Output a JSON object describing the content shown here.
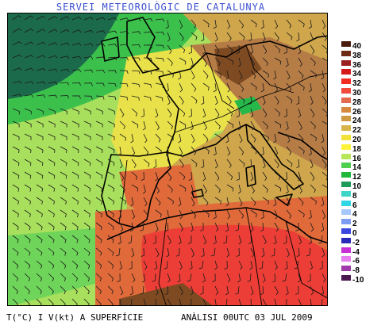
{
  "header": {
    "title": "SERVEI METEOROLÒGIC DE CATALUNYA"
  },
  "footer": {
    "left": "T(°C) I V(kt) A SUPERFÍCIE",
    "right": "ANÀLISI 00UTC 03 JUL 2009"
  },
  "legend": {
    "items": [
      {
        "label": "40",
        "color": "#4a1a0a"
      },
      {
        "label": "38",
        "color": "#6e2a12"
      },
      {
        "label": "36",
        "color": "#9b1f1f"
      },
      {
        "label": "34",
        "color": "#d41a1a"
      },
      {
        "label": "32",
        "color": "#f22b22"
      },
      {
        "label": "30",
        "color": "#ef4a3c"
      },
      {
        "label": "28",
        "color": "#e36a50"
      },
      {
        "label": "26",
        "color": "#d7883f"
      },
      {
        "label": "24",
        "color": "#cf9a44"
      },
      {
        "label": "22",
        "color": "#d7b44a"
      },
      {
        "label": "20",
        "color": "#f2e23a"
      },
      {
        "label": "18",
        "color": "#fff23a"
      },
      {
        "label": "16",
        "color": "#b8e65a"
      },
      {
        "label": "14",
        "color": "#4fcf4f"
      },
      {
        "label": "12",
        "color": "#1fb83a"
      },
      {
        "label": "10",
        "color": "#1e9a5a"
      },
      {
        "label": "8",
        "color": "#3fd6c8"
      },
      {
        "label": "6",
        "color": "#2fd6e6"
      },
      {
        "label": "4",
        "color": "#a6c8ff"
      },
      {
        "label": "2",
        "color": "#7f9cf5"
      },
      {
        "label": "0",
        "color": "#3b48e0"
      },
      {
        "label": "-2",
        "color": "#2a2ab8"
      },
      {
        "label": "-4",
        "color": "#c82fd6"
      },
      {
        "label": "-6",
        "color": "#e67ff0"
      },
      {
        "label": "-8",
        "color": "#9e3aa8"
      },
      {
        "label": "-10",
        "color": "#4b1850"
      }
    ]
  },
  "map": {
    "colors": {
      "deep_green": "#1c6a4c",
      "green": "#27b84a",
      "light_green": "#6fd45a",
      "pale_green": "#a8df5c",
      "yellow": "#e9e14a",
      "tan": "#cfa64c",
      "brown": "#b67c46",
      "dark_brown": "#7e4a22",
      "orange": "#e06a3a",
      "red": "#ec3e36",
      "coast": "#000000",
      "wind": "#1a1a1a"
    }
  }
}
